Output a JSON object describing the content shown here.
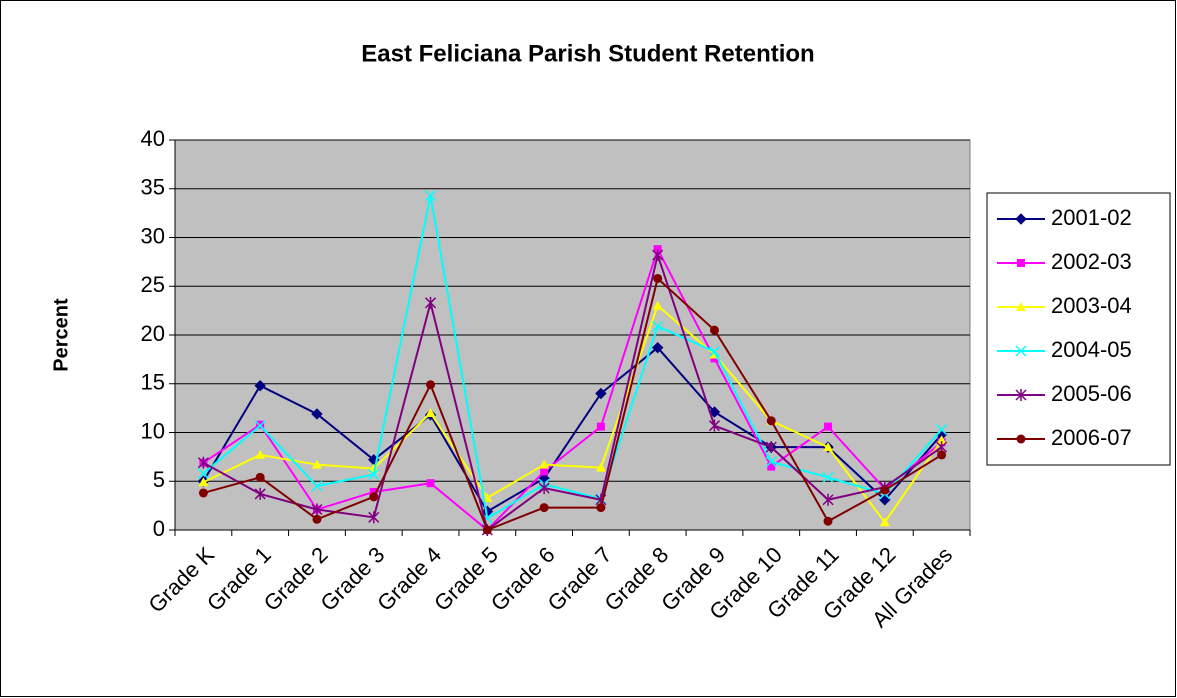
{
  "chart_data": {
    "type": "line",
    "title": "East Feliciana Parish Student Retention",
    "y_label": "Percent",
    "categories": [
      "Grade K",
      "Grade 1",
      "Grade 2",
      "Grade 3",
      "Grade 4",
      "Grade 5",
      "Grade 6",
      "Grade 7",
      "Grade 8",
      "Grade 9",
      "Grade 10",
      "Grade 11",
      "Grade 12",
      "All Grades"
    ],
    "ylim": [
      0,
      40
    ],
    "yticks": [
      0,
      5,
      10,
      15,
      20,
      25,
      30,
      35,
      40
    ],
    "grid": true,
    "legend": "right",
    "series": [
      {
        "name": "2001-02",
        "color": "#000080",
        "marker": "diamond",
        "values": [
          5,
          14.8,
          11.9,
          7.2,
          11.8,
          1.9,
          5.3,
          14,
          18.7,
          12.1,
          8.5,
          8.5,
          3.1,
          9.8
        ]
      },
      {
        "name": "2002-03",
        "color": "#FF00FF",
        "marker": "square",
        "values": [
          6.9,
          10.8,
          2.1,
          3.9,
          4.8,
          0,
          6,
          10.6,
          28.8,
          17.6,
          6.5,
          10.6,
          4.2,
          9
        ]
      },
      {
        "name": "2003-04",
        "color": "#FFFF00",
        "marker": "triangle",
        "values": [
          4.9,
          7.7,
          6.7,
          6.3,
          12,
          3.3,
          6.7,
          6.4,
          23,
          18,
          11.2,
          8.5,
          0.8,
          9.2
        ]
      },
      {
        "name": "2004-05",
        "color": "#00FFFF",
        "marker": "x",
        "values": [
          5.8,
          10.7,
          4.5,
          5.7,
          34.3,
          1.2,
          4.7,
          3.2,
          20.9,
          18.3,
          7,
          5.4,
          3.7,
          10.3
        ]
      },
      {
        "name": "2005-06",
        "color": "#800080",
        "marker": "star",
        "values": [
          6.9,
          3.7,
          2.1,
          1.3,
          23.3,
          0,
          4.3,
          3.1,
          28.2,
          10.7,
          8.5,
          3.1,
          4.4,
          8.5
        ]
      },
      {
        "name": "2006-07",
        "color": "#800000",
        "marker": "circle",
        "values": [
          3.8,
          5.4,
          1.1,
          3.4,
          14.9,
          0,
          2.3,
          2.3,
          25.8,
          20.5,
          11.2,
          0.9,
          4.1,
          7.7
        ]
      }
    ]
  }
}
